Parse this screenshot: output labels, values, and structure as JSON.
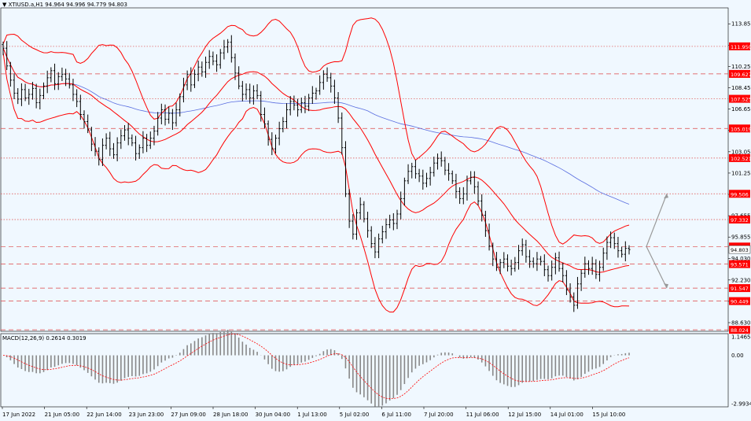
{
  "header": {
    "triangle_icon": "dropdown-triangle-icon",
    "symbol": "XTIUSD.a,H1",
    "prices": "94.964 94.996 94.779 94.803"
  },
  "macd_header": "MACD(12,26,9) 0.2614 0.3019",
  "colors": {
    "background": "#f0f8ff",
    "band": "#ff0000",
    "ma_blue": "#5a6ee0",
    "level_line": "#dd4444",
    "candle": "#000000",
    "label_bg": "#ff0000",
    "arrow": "#999999",
    "histogram": "#888888",
    "signal": "#ff0000"
  },
  "chart_data": {
    "type": "candlestick",
    "symbol": "XTIUSD.a",
    "timeframe": "H1",
    "y_axis_ticks": [
      "113.855",
      "112.030",
      "110.255",
      "108.455",
      "106.655",
      "104.855",
      "103.055",
      "101.255",
      "99.455",
      "97.655",
      "95.855",
      "94.030",
      "92.230",
      "90.430",
      "88.630"
    ],
    "ylim": [
      87.9,
      115.2
    ],
    "level_lines": [
      {
        "value": 111.95,
        "label": "111.950",
        "style": "dotted"
      },
      {
        "value": 109.627,
        "label": "109.627",
        "style": "dashed"
      },
      {
        "value": 107.525,
        "label": "107.525",
        "style": "dotted"
      },
      {
        "value": 105.019,
        "label": "105.019",
        "style": "dashed"
      },
      {
        "value": 102.521,
        "label": "102.521",
        "style": "dotted"
      },
      {
        "value": 99.506,
        "label": "99.506",
        "style": "dotted"
      },
      {
        "value": 97.332,
        "label": "97.332",
        "style": "dotted"
      },
      {
        "value": 95.054,
        "label": "95.054",
        "style": "dashed"
      },
      {
        "value": 93.571,
        "label": "93.571",
        "style": "dashed"
      },
      {
        "value": 91.547,
        "label": "91.547",
        "style": "dashed"
      },
      {
        "value": 90.449,
        "label": "90.449",
        "style": "dashed"
      },
      {
        "value": 88.024,
        "label": "88.024",
        "style": "dashed"
      }
    ],
    "current_price": {
      "value": 94.803,
      "label": "94.803"
    },
    "x_tick_labels": [
      "17 Jun 2022",
      "21 Jun 05:00",
      "22 Jun 14:00",
      "23 Jun 23:00",
      "27 Jun 09:00",
      "28 Jun 18:00",
      "30 Jun 04:00",
      "1 Jul 13:00",
      "5 Jul 02:00",
      "6 Jul 11:00",
      "7 Jul 20:00",
      "11 Jul 06:00",
      "12 Jul 15:00",
      "14 Jul 01:00",
      "15 Jul 10:00"
    ],
    "closes": [
      111.8,
      110.3,
      109.1,
      108.0,
      107.5,
      108.3,
      107.6,
      107.9,
      108.4,
      107.2,
      107.8,
      108.6,
      109.3,
      109.9,
      108.8,
      109.4,
      109.6,
      109.2,
      108.7,
      107.9,
      107.3,
      106.2,
      105.6,
      104.9,
      103.7,
      103.1,
      102.4,
      103.6,
      104.2,
      103.3,
      102.8,
      103.8,
      104.4,
      104.9,
      104.2,
      103.8,
      102.9,
      103.4,
      104.2,
      103.6,
      104.2,
      104.8,
      105.9,
      106.6,
      105.8,
      106.3,
      105.5,
      106.6,
      107.7,
      108.7,
      109.6,
      108.7,
      109.6,
      110.2,
      109.8,
      110.6,
      111.1,
      110.7,
      110.4,
      111.4,
      111.9,
      112.3,
      111.0,
      109.7,
      108.6,
      107.9,
      108.3,
      107.6,
      108.2,
      107.8,
      106.2,
      105.4,
      104.1,
      103.3,
      104.2,
      105.0,
      105.6,
      106.6,
      107.3,
      107.0,
      106.6,
      107.2,
      106.9,
      107.6,
      108.0,
      108.2,
      108.9,
      109.6,
      109.3,
      108.6,
      107.6,
      105.9,
      103.4,
      99.5,
      97.2,
      96.1,
      97.9,
      98.6,
      97.4,
      96.4,
      95.3,
      94.6,
      95.7,
      96.3,
      96.9,
      97.3,
      97.0,
      97.8,
      99.1,
      100.6,
      101.4,
      101.8,
      101.2,
      101.0,
      100.4,
      100.8,
      101.3,
      102.1,
      102.5,
      102.3,
      101.5,
      101.2,
      100.6,
      99.7,
      99.1,
      99.5,
      100.6,
      100.9,
      100.1,
      98.9,
      97.7,
      96.4,
      95.1,
      94.0,
      93.3,
      93.7,
      94.0,
      93.4,
      93.2,
      93.7,
      94.7,
      95.2,
      94.2,
      93.8,
      93.6,
      94.0,
      93.8,
      93.1,
      92.6,
      93.3,
      94.1,
      93.2,
      92.6,
      91.4,
      90.8,
      90.1,
      91.9,
      92.8,
      93.6,
      93.2,
      93.6,
      92.7,
      93.3,
      94.5,
      95.4,
      95.8,
      95.3,
      94.7,
      94.4,
      94.9,
      94.8
    ],
    "bands": {
      "period": 20,
      "deviations": 2
    },
    "ma": {
      "period": 100
    },
    "macd": {
      "fast": 12,
      "slow": 26,
      "signal": 9,
      "value": 0.2614,
      "signal_value": 0.3019,
      "axis_ticks": [
        "1.1465",
        "0.00",
        "-2.9934"
      ]
    },
    "forecast": [
      {
        "from": 95.054,
        "to": 99.506
      },
      {
        "from": 95.054,
        "to": 91.547
      }
    ]
  }
}
